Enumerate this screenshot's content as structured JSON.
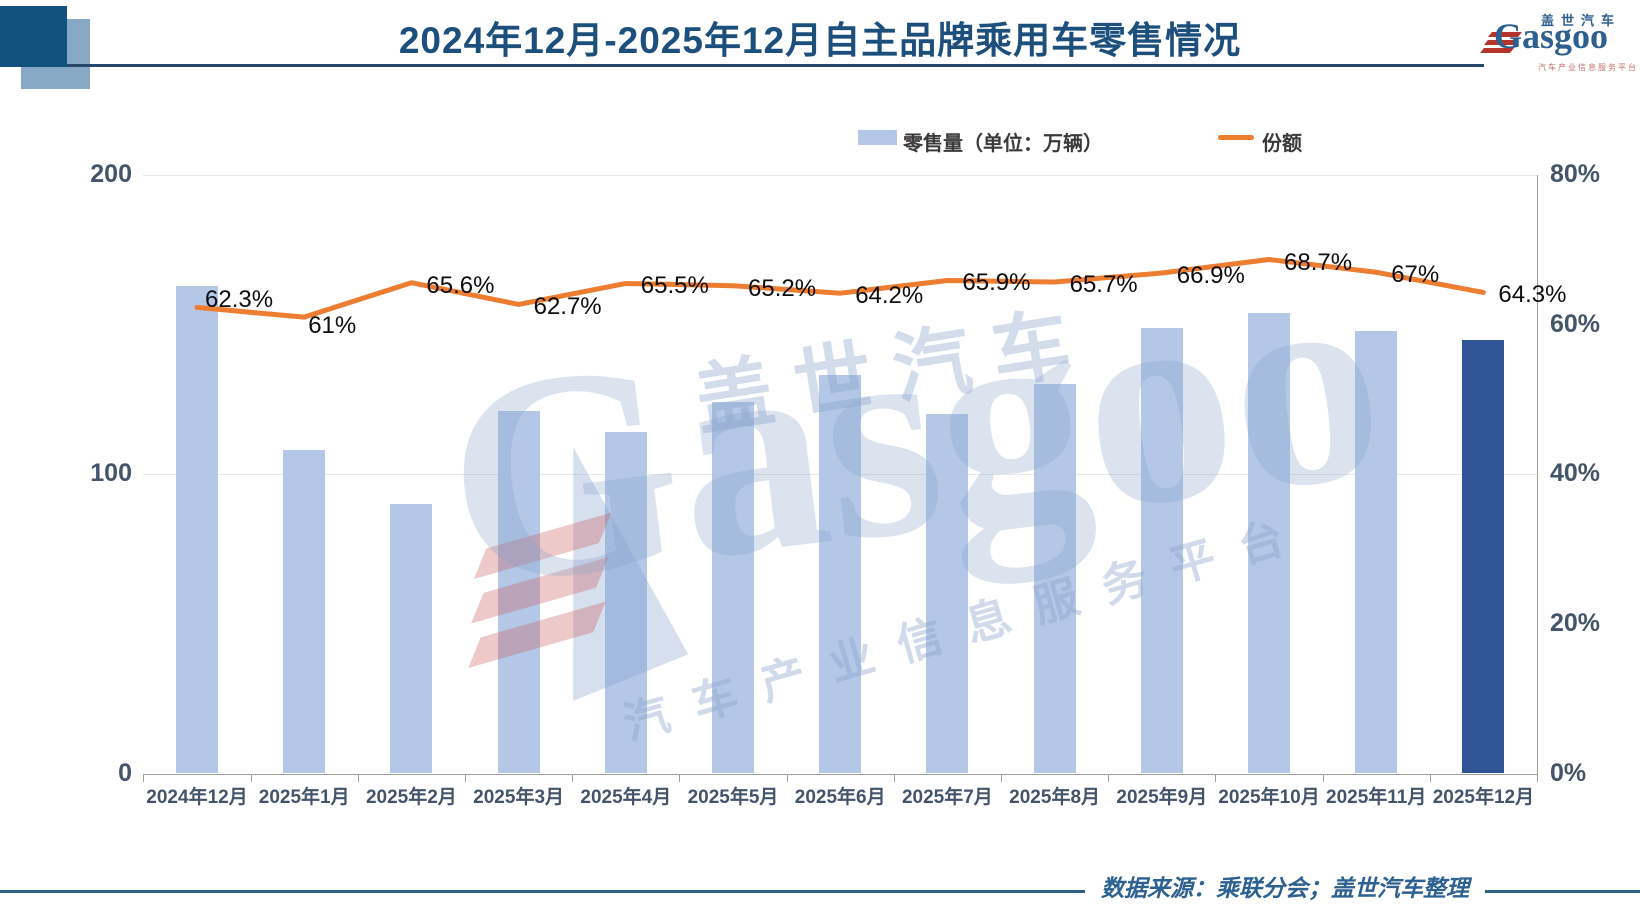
{
  "header": {
    "title": "2024年12月-2025年12月自主品牌乘用车零售情况"
  },
  "logo": {
    "brand_cn": "盖世汽车",
    "brand_en": "Gasgoo",
    "tagline": "汽车产业信息服务平台"
  },
  "legend": {
    "bar_label": "零售量（单位：万辆）",
    "line_label": "份额"
  },
  "watermark": {
    "cn": "盖世汽车",
    "en": "Gasgoo",
    "tagline": "汽车产业信息服务平台"
  },
  "footer": {
    "source": "数据来源：乘联分会；盖世汽车整理"
  },
  "chart_data": {
    "type": "bar+line",
    "title": "2024年12月-2025年12月自主品牌乘用车零售情况",
    "categories": [
      "2024年12月",
      "2025年1月",
      "2025年2月",
      "2025年3月",
      "2025年4月",
      "2025年5月",
      "2025年6月",
      "2025年7月",
      "2025年8月",
      "2025年9月",
      "2025年10月",
      "2025年11月",
      "2025年12月"
    ],
    "series": [
      {
        "name": "零售量（单位：万辆）",
        "type": "bar",
        "unit": "万辆",
        "values": [
          163,
          108,
          90,
          121,
          114,
          124,
          133,
          120,
          130,
          149,
          154,
          148,
          145
        ]
      },
      {
        "name": "份额",
        "type": "line",
        "unit": "%",
        "values": [
          62.3,
          61,
          65.6,
          62.7,
          65.5,
          65.2,
          64.2,
          65.9,
          65.7,
          66.9,
          68.7,
          67,
          64.3
        ],
        "labels": [
          "62.3%",
          "61%",
          "65.6%",
          "62.7%",
          "65.5%",
          "65.2%",
          "64.2%",
          "65.9%",
          "65.7%",
          "66.9%",
          "68.7%",
          "67%",
          "64.3%"
        ]
      }
    ],
    "left_axis": {
      "ticks": [
        0,
        100,
        200
      ],
      "labels": [
        "0",
        "100",
        "200"
      ],
      "max": 200
    },
    "right_axis": {
      "ticks": [
        0,
        20,
        40,
        60,
        80
      ],
      "labels": [
        "0%",
        "20%",
        "40%",
        "60%",
        "80%"
      ],
      "max": 80
    },
    "colors": {
      "bar": "#B4C7E7",
      "bar_highlight": "#2F5597",
      "line": "#ED7D31"
    },
    "highlight_index": 12,
    "legend_position": "top",
    "grid": "horizontal-on-left-axis-ticks"
  }
}
